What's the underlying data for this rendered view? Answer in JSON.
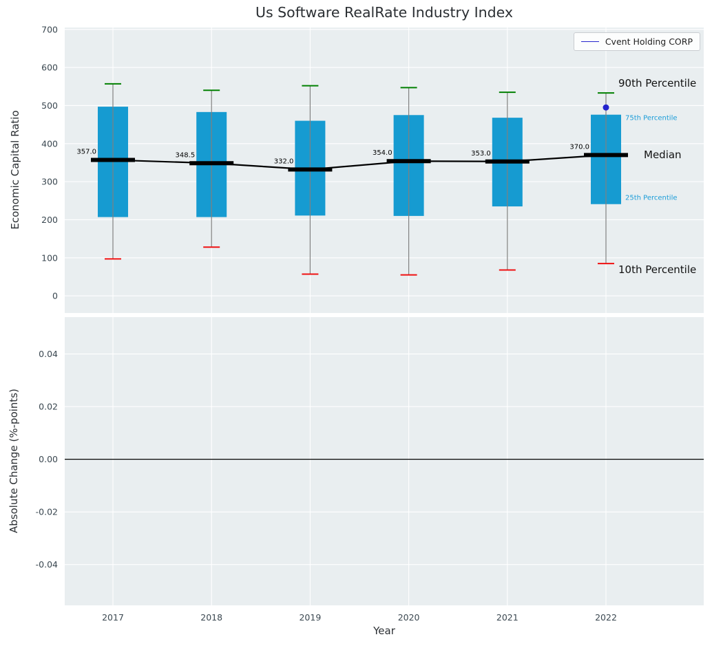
{
  "title": "Us Software RealRate Industry Index",
  "legend": {
    "label": "Cvent Holding CORP",
    "line_color": "#2424cd"
  },
  "annotations": {
    "p90": "90th Percentile",
    "p75": "75th Percentile",
    "median": "Median",
    "p25": "25th Percentile",
    "p10": "10th Percentile"
  },
  "colors": {
    "plot_bg": "#e9eef0",
    "grid": "#ffffff",
    "bar": "#169bd1",
    "whisker": "#808080",
    "cap_top": "#008000",
    "cap_bottom": "#f01010",
    "median": "#000000",
    "dot": "#2424cd",
    "small_label": "#1a9cd8",
    "tick": "#3a4750"
  },
  "chart_data": [
    {
      "type": "boxplot",
      "title": "Us Software RealRate Industry Index",
      "xlabel": "Year",
      "ylabel": "Economic Capital Ratio",
      "ylim": [
        -45,
        705
      ],
      "yticks": [
        0,
        100,
        200,
        300,
        400,
        500,
        600,
        700
      ],
      "grid": true,
      "legend_position": "upper right",
      "categories": [
        "2017",
        "2018",
        "2019",
        "2020",
        "2021",
        "2022"
      ],
      "series": [
        {
          "name": "90th Percentile",
          "values": [
            557,
            540,
            552,
            547,
            535,
            533
          ]
        },
        {
          "name": "75th Percentile",
          "values": [
            497,
            483,
            460,
            475,
            468,
            476
          ]
        },
        {
          "name": "Median",
          "values": [
            357.0,
            348.5,
            332.0,
            354.0,
            353.0,
            370.0
          ]
        },
        {
          "name": "25th Percentile",
          "values": [
            207,
            207,
            211,
            210,
            235,
            241
          ]
        },
        {
          "name": "10th Percentile",
          "values": [
            97,
            128,
            57,
            55,
            68,
            85
          ]
        }
      ],
      "point": {
        "name": "Cvent Holding CORP",
        "category": "2022",
        "value": 495
      }
    },
    {
      "type": "line",
      "xlabel": "Year",
      "ylabel": "Absolute Change (%-points)",
      "ylim": [
        -0.0555,
        0.054
      ],
      "yticks": [
        "-0.04",
        "-0.02",
        "0.00",
        "0.02",
        "0.04"
      ],
      "zero_line": 0.0,
      "grid": true,
      "series": []
    }
  ]
}
